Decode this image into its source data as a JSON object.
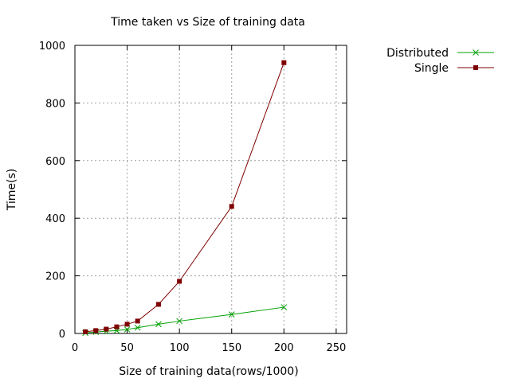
{
  "chart_data": {
    "type": "line",
    "title": "Time taken vs Size of training data",
    "xlabel": "Size of training data(rows/1000)",
    "ylabel": "Time(s)",
    "xlim": [
      0,
      260
    ],
    "ylim": [
      0,
      1000
    ],
    "xticks": [
      0,
      50,
      100,
      150,
      200,
      250
    ],
    "yticks": [
      0,
      200,
      400,
      600,
      800,
      1000
    ],
    "grid": true,
    "legend_position": "outside-top-right",
    "series": [
      {
        "name": "Distributed",
        "color": "#00a000",
        "marker": "x",
        "x": [
          10,
          20,
          30,
          40,
          50,
          60,
          80,
          100,
          150,
          200
        ],
        "y": [
          2,
          5,
          8,
          10,
          14,
          20,
          32,
          43,
          66,
          91
        ]
      },
      {
        "name": "Single",
        "color": "#7f0000",
        "marker": "square",
        "x": [
          10,
          20,
          30,
          40,
          50,
          60,
          80,
          100,
          150,
          200
        ],
        "y": [
          6,
          10,
          15,
          23,
          32,
          43,
          101,
          181,
          441,
          940
        ]
      }
    ]
  }
}
